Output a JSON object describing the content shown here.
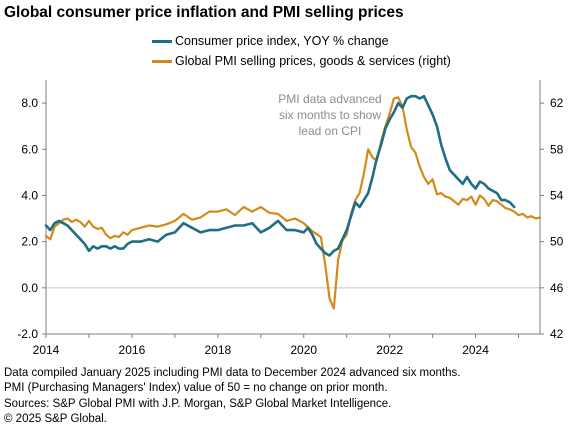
{
  "title": "Global consumer price inflation and PMI selling prices",
  "legend": [
    {
      "label": "Consumer price index, YOY % change",
      "color": "#1f6e87"
    },
    {
      "label": "Global PMI selling prices, goods & services (right)",
      "color": "#d48a1a"
    }
  ],
  "annotation": [
    "PMI data advanced",
    "six months to show",
    "lead on CPI"
  ],
  "footnotes": [
    "Data compiled January 2025 including PMI data to December 2024 advanced six months.",
    "PMI (Purchasing Managers' Index) value of 50 = no change on prior month.",
    "Sources: S&P Global PMI with J.P. Morgan, S&P Global Market Intelligence.",
    "© 2025 S&P Global."
  ],
  "chart_data": {
    "type": "line",
    "x_ticks": [
      "2014",
      "2016",
      "2018",
      "2020",
      "2022",
      "2024"
    ],
    "y_left": {
      "ticks": [
        "-2.0",
        "0.0",
        "2.0",
        "4.0",
        "6.0",
        "8.0"
      ],
      "range": [
        -2,
        9
      ]
    },
    "y_right": {
      "ticks": [
        "42",
        "46",
        "50",
        "54",
        "58",
        "62"
      ],
      "range": [
        42,
        64
      ]
    },
    "x_range": [
      2014.0,
      2025.5
    ],
    "series": [
      {
        "name": "Consumer price index, YOY % change",
        "axis": "left",
        "color": "#1f6e87",
        "x": [
          2014.0,
          2014.1,
          2014.2,
          2014.3,
          2014.4,
          2014.5,
          2014.6,
          2014.7,
          2014.8,
          2014.9,
          2015.0,
          2015.1,
          2015.2,
          2015.3,
          2015.4,
          2015.5,
          2015.6,
          2015.7,
          2015.8,
          2015.9,
          2016.0,
          2016.2,
          2016.4,
          2016.6,
          2016.8,
          2017.0,
          2017.2,
          2017.4,
          2017.6,
          2017.8,
          2018.0,
          2018.2,
          2018.4,
          2018.6,
          2018.8,
          2019.0,
          2019.2,
          2019.4,
          2019.6,
          2019.8,
          2020.0,
          2020.1,
          2020.2,
          2020.3,
          2020.4,
          2020.5,
          2020.6,
          2020.7,
          2020.8,
          2020.9,
          2021.0,
          2021.1,
          2021.2,
          2021.3,
          2021.4,
          2021.5,
          2021.6,
          2021.7,
          2021.8,
          2021.9,
          2022.0,
          2022.1,
          2022.2,
          2022.3,
          2022.4,
          2022.5,
          2022.6,
          2022.7,
          2022.8,
          2022.9,
          2023.0,
          2023.1,
          2023.2,
          2023.3,
          2023.4,
          2023.5,
          2023.6,
          2023.7,
          2023.8,
          2023.9,
          2024.0,
          2024.1,
          2024.2,
          2024.3,
          2024.4,
          2024.5,
          2024.6,
          2024.7,
          2024.8,
          2024.9
        ],
        "y": [
          2.7,
          2.5,
          2.8,
          2.9,
          2.8,
          2.7,
          2.5,
          2.3,
          2.1,
          1.9,
          1.6,
          1.8,
          1.7,
          1.8,
          1.8,
          1.7,
          1.8,
          1.7,
          1.7,
          1.9,
          2.0,
          2.0,
          2.1,
          2.0,
          2.3,
          2.4,
          2.8,
          2.6,
          2.4,
          2.5,
          2.5,
          2.6,
          2.7,
          2.7,
          2.8,
          2.4,
          2.6,
          2.9,
          2.5,
          2.5,
          2.4,
          2.6,
          2.3,
          1.9,
          1.7,
          1.5,
          1.4,
          1.6,
          1.7,
          2.1,
          2.5,
          3.1,
          3.7,
          3.5,
          3.8,
          4.1,
          4.8,
          5.6,
          6.2,
          6.9,
          7.3,
          7.6,
          8.0,
          7.8,
          8.2,
          8.3,
          8.3,
          8.2,
          8.3,
          7.9,
          7.5,
          7.0,
          6.2,
          5.6,
          5.1,
          4.9,
          4.7,
          4.5,
          4.8,
          4.5,
          4.3,
          4.6,
          4.5,
          4.3,
          4.2,
          4.1,
          3.8,
          3.8,
          3.7,
          3.5
        ]
      },
      {
        "name": "Global PMI selling prices, goods & services (right)",
        "axis": "right",
        "color": "#d48a1a",
        "x": [
          2014.0,
          2014.1,
          2014.2,
          2014.3,
          2014.4,
          2014.5,
          2014.6,
          2014.7,
          2014.8,
          2014.9,
          2015.0,
          2015.1,
          2015.2,
          2015.3,
          2015.4,
          2015.5,
          2015.6,
          2015.7,
          2015.8,
          2015.9,
          2016.0,
          2016.2,
          2016.4,
          2016.6,
          2016.8,
          2017.0,
          2017.2,
          2017.4,
          2017.6,
          2017.8,
          2018.0,
          2018.2,
          2018.4,
          2018.6,
          2018.8,
          2019.0,
          2019.2,
          2019.4,
          2019.6,
          2019.8,
          2020.0,
          2020.2,
          2020.4,
          2020.5,
          2020.6,
          2020.7,
          2020.8,
          2020.9,
          2021.0,
          2021.1,
          2021.2,
          2021.3,
          2021.4,
          2021.5,
          2021.6,
          2021.7,
          2021.8,
          2021.9,
          2022.0,
          2022.1,
          2022.2,
          2022.3,
          2022.4,
          2022.5,
          2022.6,
          2022.7,
          2022.8,
          2022.9,
          2023.0,
          2023.1,
          2023.2,
          2023.3,
          2023.4,
          2023.5,
          2023.6,
          2023.7,
          2023.8,
          2023.9,
          2024.0,
          2024.1,
          2024.2,
          2024.3,
          2024.4,
          2024.5,
          2024.6,
          2024.7,
          2024.8,
          2024.9,
          2025.0,
          2025.1,
          2025.2,
          2025.3,
          2025.4,
          2025.5
        ],
        "y": [
          50.5,
          50.2,
          51.3,
          51.6,
          51.9,
          52.0,
          51.7,
          51.9,
          51.7,
          51.3,
          51.8,
          51.3,
          51.1,
          51.2,
          50.6,
          50.3,
          50.5,
          50.4,
          50.8,
          50.6,
          51.0,
          51.2,
          51.4,
          51.3,
          51.5,
          51.8,
          52.4,
          51.9,
          52.1,
          52.6,
          52.6,
          52.8,
          52.3,
          53.0,
          52.6,
          53.0,
          52.5,
          52.4,
          51.8,
          52.0,
          51.6,
          50.9,
          50.4,
          48.0,
          45.1,
          44.2,
          48.4,
          50.1,
          50.6,
          52.4,
          53.6,
          54.2,
          55.9,
          58.0,
          57.3,
          57.0,
          58.7,
          60.0,
          61.1,
          62.4,
          62.5,
          61.7,
          59.7,
          58.2,
          57.7,
          56.5,
          55.6,
          55.0,
          55.4,
          54.1,
          54.2,
          53.9,
          53.8,
          53.5,
          53.2,
          53.7,
          53.6,
          53.9,
          53.2,
          54.0,
          53.7,
          53.1,
          53.6,
          53.5,
          53.2,
          52.9,
          52.8,
          52.6,
          52.3,
          52.4,
          52.1,
          52.2,
          52.0,
          52.1
        ]
      }
    ]
  }
}
